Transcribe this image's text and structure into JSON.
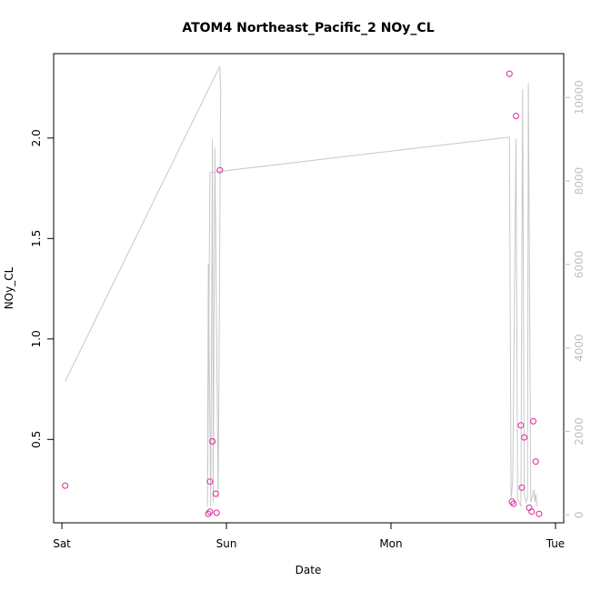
{
  "chart_data": {
    "type": "scatter",
    "title": "ATOM4 Northeast_Pacific_2 NOy_CL",
    "xlabel": "Date",
    "ylabel": "NOy_CL",
    "x_ticks": [
      {
        "label": "Sat",
        "value": 0
      },
      {
        "label": "Sun",
        "value": 1
      },
      {
        "label": "Mon",
        "value": 2
      },
      {
        "label": "Tue",
        "value": 3
      }
    ],
    "xlim": [
      -0.05,
      3.05
    ],
    "ylim": [
      0.085,
      2.42
    ],
    "y_ticks": [
      0.5,
      1.0,
      1.5,
      2.0
    ],
    "y_tick_labels": [
      "0.5",
      "1.0",
      "1.5",
      "2.0"
    ],
    "y2lim": [
      -190,
      11050
    ],
    "y2_ticks": [
      0,
      2000,
      4000,
      6000,
      8000,
      10000
    ],
    "y2_tick_labels": [
      "0",
      "2000",
      "4000",
      "6000",
      "8000",
      "10000"
    ],
    "grid": false,
    "colors": {
      "points": "#e0249a",
      "line": "#c8c8c8",
      "axis": "#000000",
      "right_axis": "#c0c0c0"
    },
    "series": [
      {
        "kind": "points",
        "x": [
          0.02,
          0.89,
          0.9,
          0.9,
          0.915,
          0.935,
          0.94,
          0.96,
          2.72,
          2.735,
          2.745,
          2.76,
          2.79,
          2.795,
          2.81,
          2.84,
          2.855,
          2.865,
          2.88,
          2.9
        ],
        "y": [
          0.27,
          0.13,
          0.29,
          0.14,
          0.49,
          0.23,
          0.135,
          1.84,
          2.32,
          0.19,
          0.18,
          2.11,
          0.57,
          0.26,
          0.51,
          0.16,
          0.14,
          0.59,
          0.39,
          0.13
        ]
      },
      {
        "kind": "line",
        "axis": "right",
        "x": [
          0.02,
          0.96,
          0.965,
          0.95,
          0.93,
          0.92,
          0.915,
          0.905,
          0.89,
          0.885,
          0.9,
          2.72,
          2.73,
          2.74,
          2.76,
          2.77,
          2.78,
          2.79,
          2.8,
          2.81,
          2.82,
          2.83,
          2.835,
          2.85,
          2.87,
          2.875,
          2.88,
          2.89
        ],
        "y": [
          3200,
          10750,
          10200,
          400,
          8800,
          300,
          9000,
          200,
          6000,
          200,
          8200,
          9050,
          400,
          800,
          9000,
          400,
          300,
          200,
          10200,
          500,
          300,
          400,
          10350,
          300,
          600,
          300,
          500,
          200
        ]
      }
    ]
  }
}
